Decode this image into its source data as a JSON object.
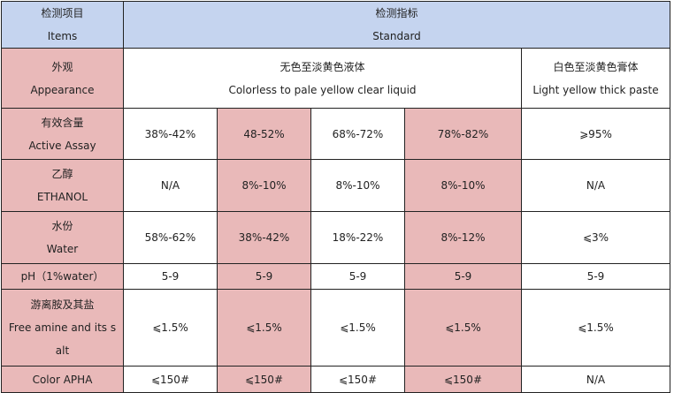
{
  "header": {
    "items_zh": "检测项目",
    "items_en": "Items",
    "standard_zh": "检测指标",
    "standard_en": "Standard"
  },
  "rows": {
    "appearance": {
      "label_zh": "外观",
      "label_en": "Appearance",
      "liquid_zh": "无色至淡黄色液体",
      "liquid_en": "Colorless to pale yellow clear liquid",
      "paste_zh": "白色至淡黄色膏体",
      "paste_en": "Light yellow thick paste"
    },
    "active": {
      "label_zh": "有效含量",
      "label_en": "Active Assay",
      "values": [
        "38%-42%",
        "48-52%",
        "68%-72%",
        "78%-82%",
        "⩾95%"
      ]
    },
    "ethanol": {
      "label_zh": "乙醇",
      "label_en": "ETHANOL",
      "values": [
        "N/A",
        "8%-10%",
        "8%-10%",
        "8%-10%",
        "N/A"
      ]
    },
    "water": {
      "label_zh": "水份",
      "label_en": "Water",
      "values": [
        "58%-62%",
        "38%-42%",
        "18%-22%",
        "8%-12%",
        "⩽3%"
      ]
    },
    "ph": {
      "label": "pH（1%water）",
      "values": [
        "5-9",
        "5-9",
        "5-9",
        "5-9",
        "5-9"
      ]
    },
    "amine": {
      "label_zh": "游离胺及其盐",
      "label_en_1": "Free amine and its s",
      "label_en_2": "alt",
      "values": [
        "⩽1.5%",
        "⩽1.5%",
        "⩽1.5%",
        "⩽1.5%",
        "⩽1.5%"
      ]
    },
    "color": {
      "label": "Color APHA",
      "values": [
        "⩽150#",
        "⩽150#",
        "⩽150#",
        "⩽150#",
        "N/A"
      ]
    }
  },
  "colors": {
    "header_bg": "#c5d4ef",
    "highlight_bg": "#e9b9b9",
    "border": "#222222"
  }
}
